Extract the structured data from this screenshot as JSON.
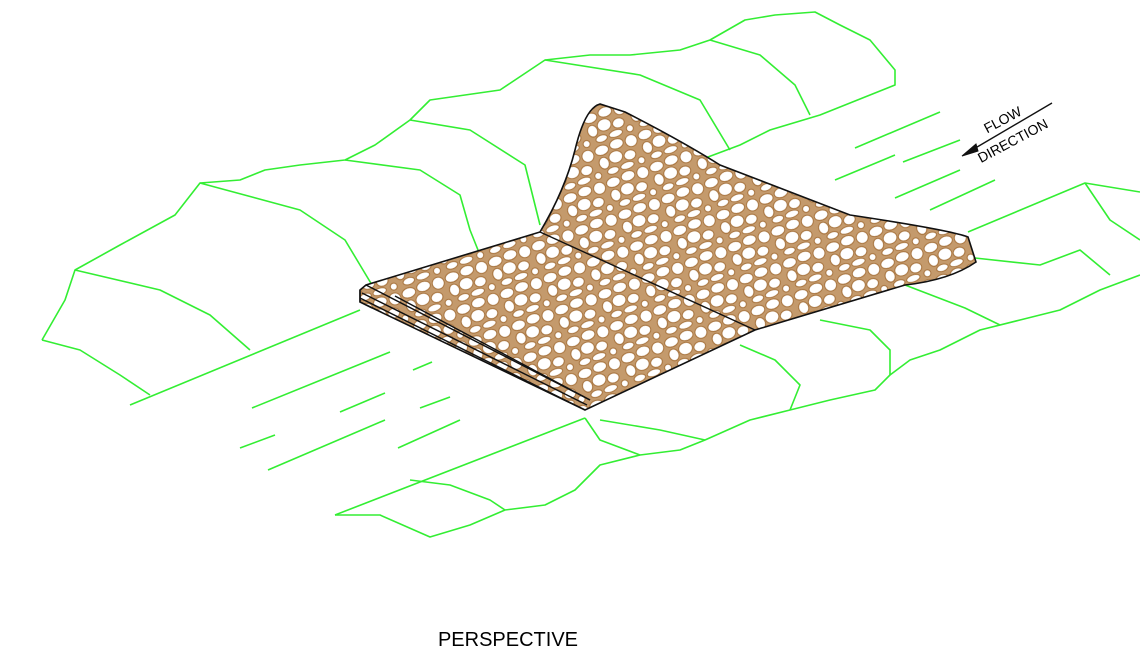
{
  "labels": {
    "flow": "FLOW",
    "direction": "DIRECTION"
  },
  "caption": "PERSPECTIVE"
}
